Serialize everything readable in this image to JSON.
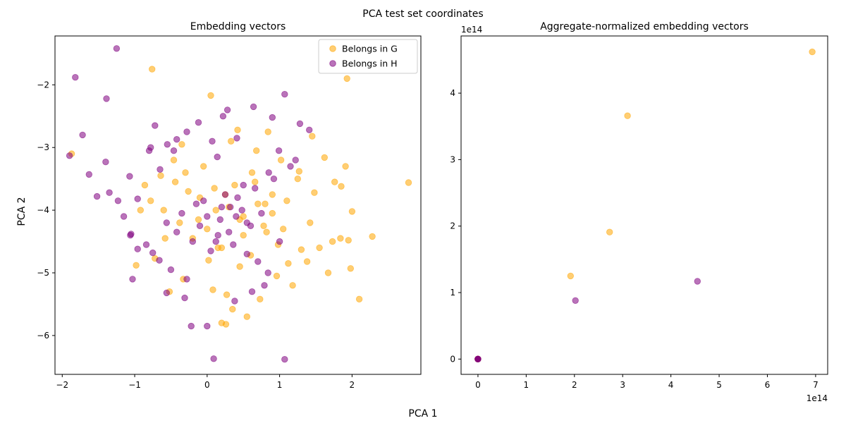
{
  "figure": {
    "suptitle": "PCA test set coordinates",
    "xlabel": "PCA 1",
    "ylabel": "PCA 2"
  },
  "colors": {
    "G": "#ffa500",
    "H": "#800080"
  },
  "chart_data": [
    {
      "type": "scatter",
      "title": "Embedding vectors",
      "xlabel": "PCA 1",
      "ylabel": "PCA 2",
      "xlim": [
        -2.1,
        2.95
      ],
      "ylim": [
        -6.62,
        -1.22
      ],
      "xticks": [
        -2,
        -1,
        0,
        1,
        2
      ],
      "yticks": [
        -6,
        -5,
        -4,
        -3,
        -2
      ],
      "legend": {
        "position": "top-right",
        "entries": [
          "Belongs in G",
          "Belongs in H"
        ]
      },
      "series": [
        {
          "name": "Belongs in G",
          "color": "#ffa500",
          "points_note": "dense cloud; representative points sampled",
          "x": [
            -1.87,
            -0.76,
            0.2,
            0.26,
            1.93,
            2.78,
            0.42,
            0.05,
            -0.35,
            0.84,
            1.45,
            1.62,
            1.91,
            1.76,
            1.48,
            1.27,
            1.02,
            0.68,
            0.33,
            -0.05,
            -0.46,
            -0.92,
            -0.98,
            -0.72,
            -0.52,
            -0.58,
            -0.33,
            0.08,
            0.27,
            0.35,
            0.55,
            0.73,
            0.96,
            1.18,
            1.38,
            1.55,
            1.73,
            1.84,
            1.98,
            2.1,
            2.28,
            2.0,
            1.85,
            1.95,
            1.67,
            1.42,
            1.3,
            1.12,
            0.98,
            0.82,
            0.6,
            0.45,
            0.2,
            0.0,
            -0.2,
            -0.38,
            -0.6,
            -0.78,
            -0.86,
            -0.64,
            -0.44,
            -0.26,
            -0.1,
            0.1,
            0.3,
            0.5,
            0.7,
            0.9,
            1.1,
            1.25,
            0.62,
            0.38,
            0.12,
            -0.12,
            0.5,
            0.78,
            1.05,
            0.25,
            0.66,
            0.15,
            0.9,
            -0.3,
            0.02,
            0.45,
            0.8
          ],
          "y": [
            -3.1,
            -1.75,
            -5.8,
            -5.82,
            -1.9,
            -3.56,
            -2.72,
            -2.17,
            -2.95,
            -2.75,
            -2.82,
            -3.16,
            -3.3,
            -3.55,
            -3.72,
            -3.38,
            -3.2,
            -3.05,
            -2.9,
            -3.3,
            -3.2,
            -4.0,
            -4.88,
            -4.77,
            -5.3,
            -4.45,
            -5.1,
            -5.27,
            -5.35,
            -5.58,
            -5.7,
            -5.42,
            -5.05,
            -5.2,
            -4.82,
            -4.6,
            -4.5,
            -4.45,
            -4.93,
            -5.42,
            -4.42,
            -4.02,
            -3.62,
            -4.48,
            -5.0,
            -4.2,
            -4.63,
            -4.85,
            -4.55,
            -4.35,
            -4.72,
            -4.9,
            -4.6,
            -4.3,
            -4.45,
            -4.2,
            -4.0,
            -3.85,
            -3.6,
            -3.45,
            -3.55,
            -3.7,
            -3.8,
            -3.65,
            -3.95,
            -4.1,
            -3.9,
            -4.05,
            -3.85,
            -3.5,
            -3.4,
            -3.6,
            -4.0,
            -4.15,
            -4.4,
            -4.25,
            -4.3,
            -3.75,
            -3.55,
            -4.6,
            -3.75,
            -3.4,
            -4.8,
            -4.15,
            -3.9
          ]
        },
        {
          "name": "Belongs in H",
          "color": "#800080",
          "points_note": "dense cloud; representative points sampled",
          "x": [
            -1.25,
            -1.82,
            -1.39,
            -1.72,
            -1.9,
            -1.4,
            -1.35,
            -1.52,
            -1.63,
            -1.07,
            -1.23,
            -1.15,
            -1.05,
            -0.96,
            -0.8,
            -0.78,
            -0.72,
            -0.65,
            -0.55,
            -0.46,
            -0.42,
            -0.28,
            -0.12,
            0.07,
            0.14,
            0.22,
            0.28,
            0.41,
            0.64,
            0.9,
            0.99,
            1.07,
            1.28,
            1.41,
            1.07,
            0.09,
            0.0,
            -0.22,
            -0.31,
            -0.28,
            -0.5,
            -0.66,
            -0.75,
            -0.84,
            -0.96,
            -1.06,
            -1.03,
            -0.56,
            0.38,
            0.62,
            0.79,
            0.84,
            0.7,
            0.55,
            0.36,
            0.15,
            -0.1,
            0.0,
            0.2,
            0.42,
            0.66,
            0.92,
            1.15,
            1.22,
            0.85,
            0.5,
            0.25,
            -0.15,
            -0.35,
            -0.56,
            -0.42,
            -0.2,
            0.05,
            0.3,
            0.55,
            0.75,
            1.0,
            0.32,
            0.48,
            0.18,
            -0.05,
            0.6,
            0.12,
            0.4
          ],
          "y": [
            -1.42,
            -1.88,
            -2.22,
            -2.8,
            -3.13,
            -3.23,
            -3.72,
            -3.78,
            -3.43,
            -3.46,
            -3.85,
            -4.1,
            -4.38,
            -3.82,
            -3.05,
            -3.0,
            -2.65,
            -3.35,
            -2.95,
            -3.05,
            -2.87,
            -2.75,
            -2.6,
            -2.9,
            -3.15,
            -2.5,
            -2.4,
            -2.85,
            -2.35,
            -2.52,
            -3.05,
            -2.15,
            -2.62,
            -2.72,
            -6.38,
            -6.37,
            -5.85,
            -5.85,
            -5.4,
            -5.1,
            -4.95,
            -4.8,
            -4.68,
            -4.55,
            -4.62,
            -4.4,
            -5.1,
            -5.32,
            -5.45,
            -5.3,
            -5.2,
            -5.0,
            -4.82,
            -4.7,
            -4.55,
            -4.4,
            -4.25,
            -4.1,
            -3.95,
            -3.8,
            -3.65,
            -3.5,
            -3.3,
            -3.2,
            -3.4,
            -3.6,
            -3.75,
            -3.9,
            -4.05,
            -4.2,
            -4.35,
            -4.5,
            -4.65,
            -4.35,
            -4.2,
            -4.05,
            -4.5,
            -3.95,
            -4.0,
            -4.15,
            -3.85,
            -4.25,
            -4.5,
            -4.1
          ]
        }
      ]
    },
    {
      "type": "scatter",
      "title": "Aggregate-normalized embedding vectors",
      "xlabel": "PCA 1",
      "ylabel": "",
      "scale_note": "1e14",
      "xlim": [
        -0.35,
        7.25
      ],
      "ylim": [
        -0.23,
        4.86
      ],
      "xticks": [
        0,
        1,
        2,
        3,
        4,
        5,
        6,
        7
      ],
      "yticks": [
        0,
        1,
        2,
        3,
        4
      ],
      "series": [
        {
          "name": "Belongs in G",
          "color": "#ffa500",
          "x": [
            6.93,
            3.1,
            2.73,
            1.92,
            0.0,
            0.0,
            0.0,
            0.0
          ],
          "y": [
            4.62,
            3.66,
            1.91,
            1.25,
            0.0,
            0.0,
            0.0,
            0.0
          ]
        },
        {
          "name": "Belongs in H",
          "color": "#800080",
          "x": [
            4.55,
            2.02,
            0.0,
            0.0,
            0.0,
            0.0
          ],
          "y": [
            1.17,
            0.88,
            0.0,
            0.0,
            0.0,
            0.0
          ]
        }
      ]
    }
  ]
}
